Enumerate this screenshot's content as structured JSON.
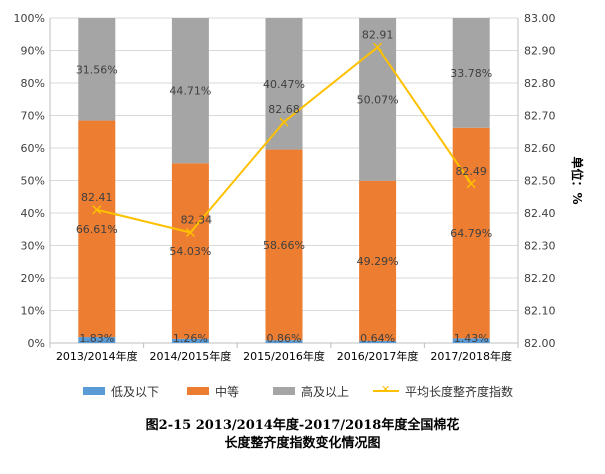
{
  "chart_data": {
    "type": "bar",
    "stacked": true,
    "categories": [
      "2013/2014年度",
      "2014/2015年度",
      "2015/2016年度",
      "2016/2017年度",
      "2017/2018年度"
    ],
    "series": [
      {
        "name": "低及以下",
        "values": [
          1.83,
          1.26,
          0.86,
          0.64,
          1.43
        ],
        "labels": [
          "1.83%",
          "1.26%",
          "0.86%",
          "0.64%",
          "1.43%"
        ],
        "color": "#5B9BD5"
      },
      {
        "name": "中等",
        "values": [
          66.61,
          54.03,
          58.66,
          49.29,
          64.79
        ],
        "labels": [
          "66.61%",
          "54.03%",
          "58.66%",
          "49.29%",
          "64.79%"
        ],
        "color": "#ED7D31"
      },
      {
        "name": "高及以上",
        "values": [
          31.56,
          44.71,
          40.47,
          50.07,
          33.78
        ],
        "labels": [
          "31.56%",
          "44.71%",
          "40.47%",
          "50.07%",
          "33.78%"
        ],
        "color": "#A5A5A5"
      }
    ],
    "line_series": {
      "name": "平均长度整齐度指数",
      "values": [
        82.41,
        82.34,
        82.68,
        82.91,
        82.49
      ],
      "labels": [
        "82.41",
        "82.34",
        "82.68",
        "82.91",
        "82.49"
      ],
      "color": "#FFC000",
      "axis": "right"
    },
    "y_left": {
      "ticks": [
        "0%",
        "10%",
        "20%",
        "30%",
        "40%",
        "50%",
        "60%",
        "70%",
        "80%",
        "90%",
        "100%"
      ],
      "ylim": [
        0,
        100
      ]
    },
    "y_right": {
      "ticks": [
        "82.00",
        "82.10",
        "82.20",
        "82.30",
        "82.40",
        "82.50",
        "82.60",
        "82.70",
        "82.80",
        "82.90",
        "83.00"
      ],
      "ylim": [
        82.0,
        83.0
      ],
      "label": "单位：%"
    },
    "legend_position": "bottom",
    "grid": true
  },
  "caption": {
    "line1": "图2-15 2013/2014年度-2017/2018年度全国棉花",
    "line2": "长度整齐度指数变化情况图"
  }
}
